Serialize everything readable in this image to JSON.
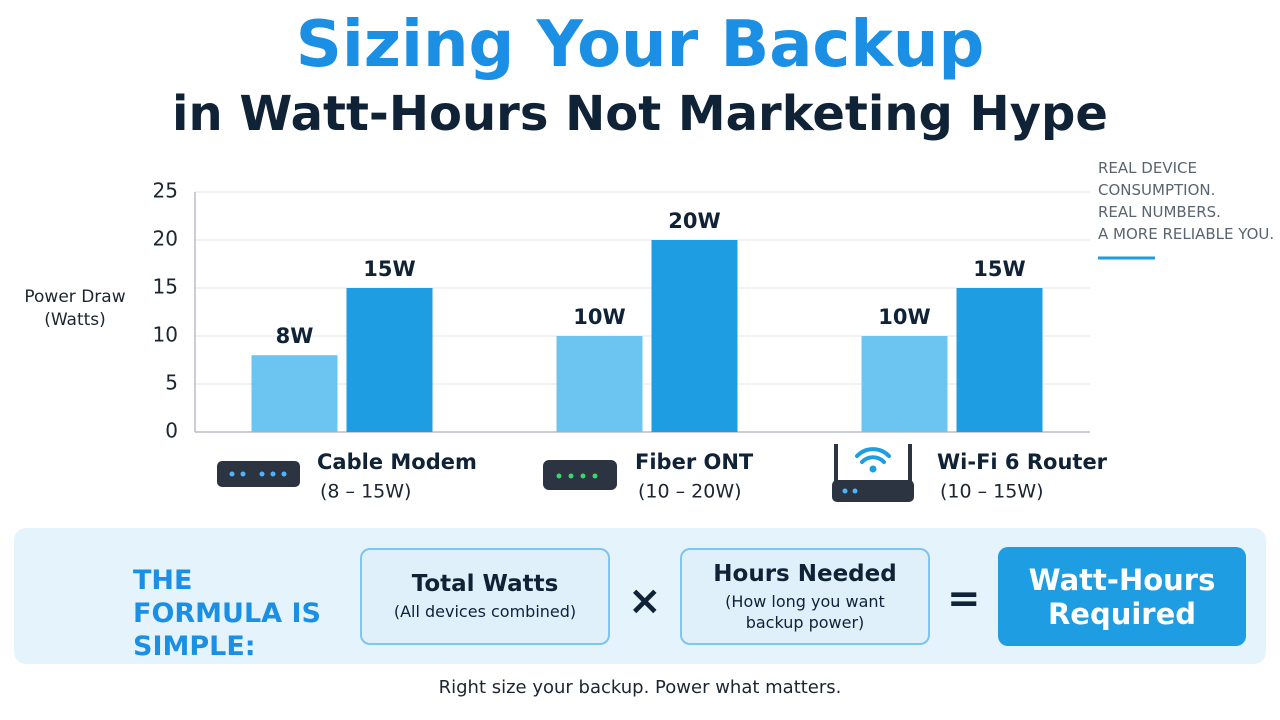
{
  "header": {
    "title": "Sizing Your Backup",
    "subtitle": "in Watt-Hours Not Marketing Hype"
  },
  "side_note": [
    "REAL DEVICE",
    "CONSUMPTION.",
    "REAL NUMBERS.",
    "A MORE RELIABLE YOU."
  ],
  "chart_data": {
    "type": "bar",
    "y_label": "Power Draw (Watts)",
    "categories": [
      "Cable Modem",
      "Fiber ONT",
      "Wi-Fi 6 Router"
    ],
    "category_notes": [
      "(8 – 15W)",
      "(10 – 20W)",
      "(10 – 15W)"
    ],
    "series": [
      {
        "color": "#6cc4f0",
        "values": [
          8,
          10,
          10
        ],
        "value_labels": [
          "8W",
          "10W",
          "10W"
        ]
      },
      {
        "color": "#1e9de2",
        "values": [
          15,
          20,
          15
        ],
        "value_labels": [
          "15W",
          "20W",
          "15W"
        ]
      }
    ],
    "ylim": [
      0,
      25
    ],
    "yticks": [
      0,
      5,
      10,
      15,
      20,
      25
    ],
    "grid": true
  },
  "formula": {
    "heading": "THE FORMULA IS SIMPLE:",
    "term1": {
      "title": "Total Watts",
      "note": "(All devices combined)"
    },
    "operator1": "×",
    "term2": {
      "title": "Hours Needed",
      "note": "(How long you want backup power)"
    },
    "operator2": "=",
    "result": "Watt-Hours Required"
  },
  "footer": "Right size your backup. Power what matters."
}
